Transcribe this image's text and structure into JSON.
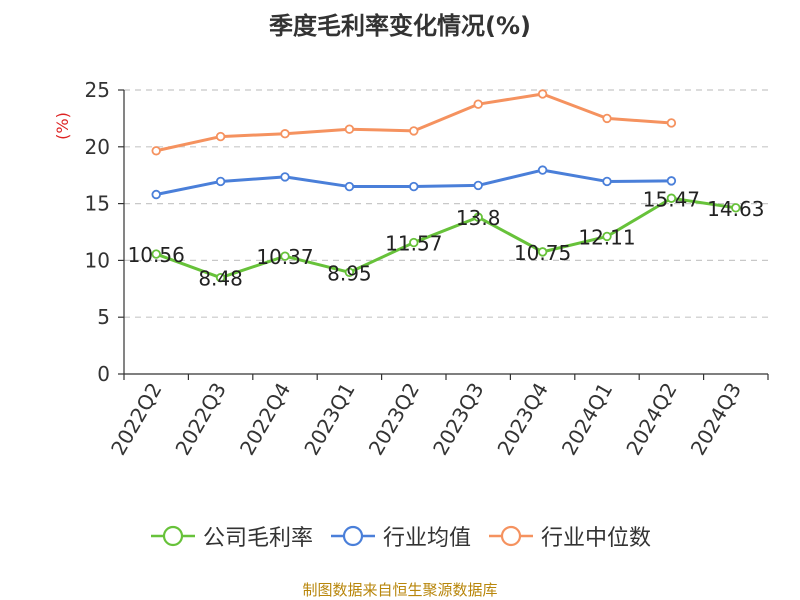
{
  "chart_data": {
    "type": "line",
    "title": "季度毛利率变化情况(%)",
    "ylabel": "(%)",
    "xlabel": "",
    "categories": [
      "2022Q2",
      "2022Q3",
      "2022Q4",
      "2023Q1",
      "2023Q2",
      "2023Q3",
      "2023Q4",
      "2024Q1",
      "2024Q2",
      "2024Q3"
    ],
    "ylim": [
      0,
      25
    ],
    "yticks": [
      0,
      5,
      10,
      15,
      20,
      25
    ],
    "grid": true,
    "legend_position": "bottom",
    "series": [
      {
        "name": "公司毛利率",
        "color": "#67c23a",
        "show_labels": true,
        "values": [
          10.56,
          8.48,
          10.37,
          8.95,
          11.57,
          13.8,
          10.75,
          12.11,
          15.47,
          14.63
        ],
        "labels": [
          "10.56",
          "8.48",
          "10.37",
          "8.95",
          "11.57",
          "13.8",
          "10.75",
          "12.11",
          "15.47",
          "14.63"
        ]
      },
      {
        "name": "行业均值",
        "color": "#4a7fd9",
        "show_labels": false,
        "values": [
          15.8,
          16.95,
          17.35,
          16.5,
          16.5,
          16.6,
          17.95,
          16.95,
          17.0,
          null
        ]
      },
      {
        "name": "行业中位数",
        "color": "#f5925f",
        "show_labels": false,
        "values": [
          19.65,
          20.9,
          21.15,
          21.55,
          21.4,
          23.75,
          24.65,
          22.5,
          22.1,
          null
        ]
      }
    ],
    "source": "制图数据来自恒生聚源数据库"
  }
}
